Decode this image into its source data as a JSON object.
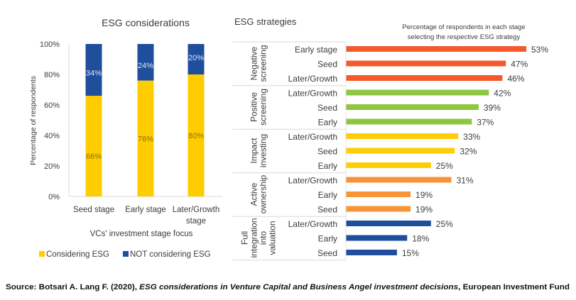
{
  "chart_data": [
    {
      "type": "bar",
      "stacked": true,
      "title": "ESG considerations",
      "xlabel": "VCs' investment stage focus",
      "ylabel": "Percentage of respondents",
      "ylim": [
        0,
        100
      ],
      "yticks": [
        "0%",
        "20%",
        "40%",
        "60%",
        "80%",
        "100%"
      ],
      "categories": [
        [
          "Seed stage"
        ],
        [
          "Early stage"
        ],
        [
          "Later/Growth",
          "stage"
        ]
      ],
      "series": [
        {
          "name": "Considering ESG",
          "values": [
            66,
            76,
            80
          ],
          "labels": [
            "66%",
            "76%",
            "80%"
          ],
          "color": "#ffcc00"
        },
        {
          "name": "NOT considering ESG",
          "values": [
            34,
            24,
            20
          ],
          "labels": [
            "34%",
            "24%",
            "20%"
          ],
          "color": "#1f4e9c"
        }
      ],
      "legend": "bottom",
      "grid": false
    },
    {
      "type": "bar",
      "orientation": "horizontal",
      "title": "ESG strategies",
      "subtitle": [
        "Percentage of respondents in each stage",
        "selecting the respective ESG strategy"
      ],
      "xlim": [
        0,
        55
      ],
      "grid": false,
      "groups": [
        {
          "name": [
            "Negative",
            "screening"
          ],
          "color": "#f4582b",
          "bars": [
            {
              "stage": "Early stage",
              "value": 53,
              "label": "53%"
            },
            {
              "stage": "Seed",
              "value": 47,
              "label": "47%"
            },
            {
              "stage": "Later/Growth",
              "value": 46,
              "label": "46%"
            }
          ]
        },
        {
          "name": [
            "Positive",
            "screening"
          ],
          "color": "#8dc63f",
          "bars": [
            {
              "stage": "Later/Growth",
              "value": 42,
              "label": "42%"
            },
            {
              "stage": "Seed",
              "value": 39,
              "label": "39%"
            },
            {
              "stage": "Early",
              "value": 37,
              "label": "37%"
            }
          ]
        },
        {
          "name": [
            "Impact",
            "investing"
          ],
          "color": "#ffcc0a",
          "bars": [
            {
              "stage": "Later/Growth",
              "value": 33,
              "label": "33%"
            },
            {
              "stage": "Seed",
              "value": 32,
              "label": "32%"
            },
            {
              "stage": "Early",
              "value": 25,
              "label": "25%"
            }
          ]
        },
        {
          "name": [
            "Active",
            "ownership"
          ],
          "color": "#f7943a",
          "bars": [
            {
              "stage": "Later/Growth",
              "value": 31,
              "label": "31%"
            },
            {
              "stage": "Early",
              "value": 19,
              "label": "19%"
            },
            {
              "stage": "Seed",
              "value": 19,
              "label": "19%"
            }
          ]
        },
        {
          "name": [
            "Full",
            "integration",
            "into",
            "valuation"
          ],
          "color": "#1f4e9c",
          "bars": [
            {
              "stage": "Later/Growth",
              "value": 25,
              "label": "25%"
            },
            {
              "stage": "Early",
              "value": 18,
              "label": "18%"
            },
            {
              "stage": "Seed",
              "value": 15,
              "label": "15%"
            }
          ]
        }
      ]
    }
  ],
  "source": {
    "prefix": "Source: Botsari A. Lang F. (2020), ",
    "title": "ESG considerations in Venture Capital and Business Angel investment decisions",
    "suffix": ", European Investment Fund"
  }
}
